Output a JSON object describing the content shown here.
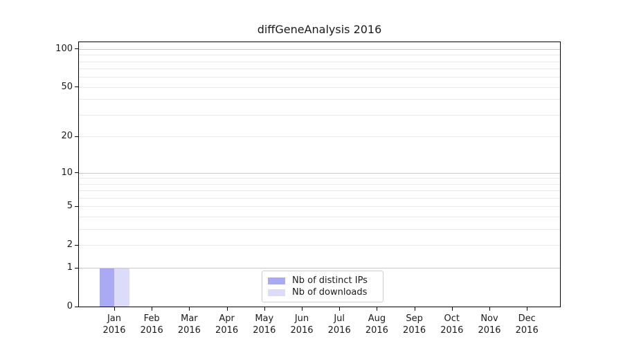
{
  "chart_data": {
    "type": "bar",
    "title": "diffGeneAnalysis 2016",
    "categories": [
      "Jan",
      "Feb",
      "Mar",
      "Apr",
      "May",
      "Jun",
      "Jul",
      "Aug",
      "Sep",
      "Oct",
      "Nov",
      "Dec"
    ],
    "category_year": "2016",
    "series": [
      {
        "name": "Nb of distinct IPs",
        "color": "#a9a9f4",
        "values": [
          1,
          0,
          0,
          0,
          0,
          0,
          0,
          0,
          0,
          0,
          0,
          0
        ]
      },
      {
        "name": "Nb of downloads",
        "color": "#dcdcf8",
        "values": [
          1,
          0,
          0,
          0,
          0,
          0,
          0,
          0,
          0,
          0,
          0,
          0
        ]
      }
    ],
    "xlabel": "",
    "ylabel": "",
    "y_axis": {
      "scale": "log1p",
      "ticks": [
        0,
        1,
        2,
        5,
        10,
        20,
        50,
        100
      ],
      "minor_ticks": [
        3,
        4,
        6,
        7,
        8,
        9,
        30,
        40,
        60,
        70,
        80,
        90
      ],
      "decade_gridlines": [
        1,
        10,
        100
      ],
      "min": 0,
      "max": 113
    },
    "grid": {
      "on": true,
      "major_color": "#c9c9c9",
      "minor_color": "#eaeaea"
    },
    "legend": {
      "position": "lower center",
      "entries": [
        "Nb of distinct IPs",
        "Nb of downloads"
      ]
    },
    "background": "#ffffff",
    "axis_color": "#000000"
  }
}
